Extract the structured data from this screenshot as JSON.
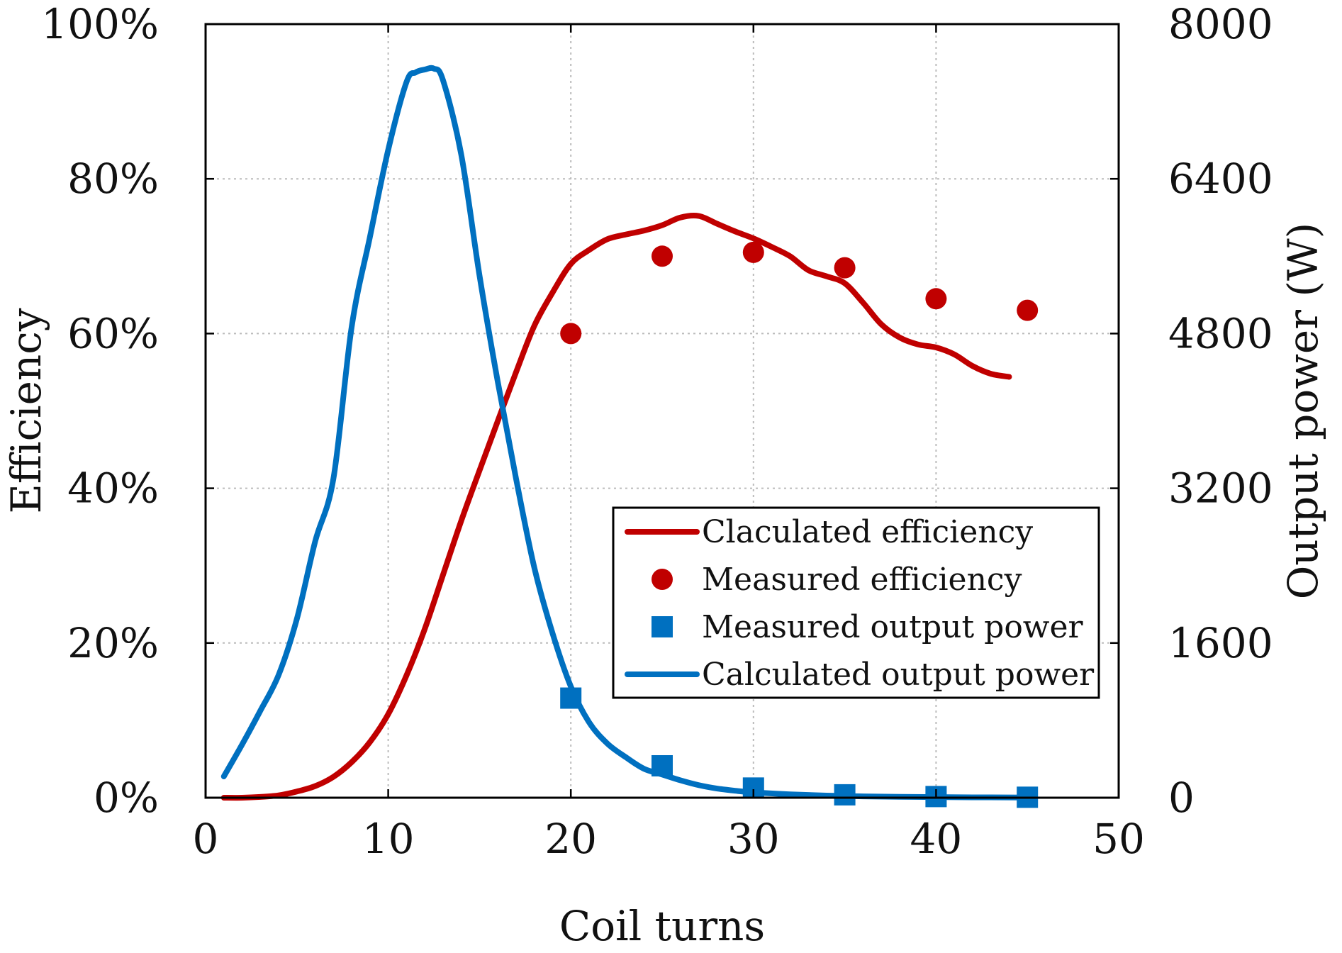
{
  "chart_data": {
    "type": "line",
    "title": "",
    "xlabel": "Coil turns",
    "ylabel_left": "Efficiency",
    "ylabel_right": "Output power (W)",
    "xlim": [
      0,
      50
    ],
    "ylim_left": [
      0,
      100
    ],
    "ylim_right": [
      0,
      8000
    ],
    "x_ticks": [
      "0",
      "10",
      "20",
      "30",
      "40",
      "50"
    ],
    "y_left_ticks": [
      "0%",
      "20%",
      "40%",
      "60%",
      "80%",
      "100%"
    ],
    "y_right_ticks": [
      "0",
      "1600",
      "3200",
      "4800",
      "6400",
      "8000"
    ],
    "grid": true,
    "legend_position": "center-right",
    "colors": {
      "efficiency": "#c00000",
      "power": "#0070c0"
    },
    "series": [
      {
        "name": "Claculated efficiency",
        "axis": "left",
        "style": "line",
        "x": [
          1,
          2,
          3,
          4,
          5,
          6,
          7,
          8,
          9,
          10,
          11,
          12,
          13,
          14,
          15,
          16,
          17,
          18,
          19,
          20,
          21,
          22,
          23,
          24,
          25,
          26,
          27,
          28,
          29,
          30,
          31,
          32,
          33,
          34,
          35,
          36,
          37,
          38,
          39,
          40,
          41,
          42,
          43,
          44
        ],
        "y": [
          0,
          0,
          0.1,
          0.3,
          0.8,
          1.5,
          2.7,
          4.6,
          7.2,
          10.8,
          15.8,
          21.8,
          28.8,
          35.8,
          42.3,
          48.7,
          55,
          61,
          65.3,
          69,
          70.8,
          72.2,
          72.8,
          73.3,
          74,
          75,
          75.2,
          74.2,
          73.2,
          72.3,
          71.2,
          70,
          68.2,
          67.4,
          66.5,
          64,
          61.2,
          59.5,
          58.6,
          58.2,
          57.3,
          55.8,
          54.8,
          54.4
        ]
      },
      {
        "name": "Measured efficiency",
        "axis": "left",
        "style": "marker-circle",
        "x": [
          20,
          25,
          30,
          35,
          40,
          45
        ],
        "y": [
          60,
          70,
          70.5,
          68.5,
          64.5,
          63
        ]
      },
      {
        "name": "Measured output power",
        "axis": "right",
        "style": "marker-square",
        "x": [
          20,
          25,
          30,
          35,
          40,
          45
        ],
        "y": [
          1030,
          330,
          100,
          30,
          12,
          5
        ]
      },
      {
        "name": "Calculated output power",
        "axis": "right",
        "style": "line",
        "x": [
          1,
          2,
          3,
          4,
          5,
          6,
          7,
          8,
          9,
          10,
          11,
          11.5,
          12,
          12.5,
          13,
          14,
          15,
          16,
          17,
          18,
          19,
          20,
          21,
          22,
          23,
          24,
          25,
          26,
          27,
          28,
          29,
          30,
          32,
          34,
          36,
          38,
          40,
          42,
          44,
          45
        ],
        "y": [
          220,
          550,
          900,
          1270,
          1850,
          2650,
          3300,
          4870,
          5800,
          6700,
          7400,
          7500,
          7530,
          7540,
          7420,
          6650,
          5400,
          4300,
          3300,
          2380,
          1700,
          1150,
          780,
          560,
          420,
          300,
          240,
          180,
          130,
          95,
          72,
          55,
          35,
          22,
          14,
          9,
          6,
          4,
          3,
          2
        ]
      }
    ]
  }
}
